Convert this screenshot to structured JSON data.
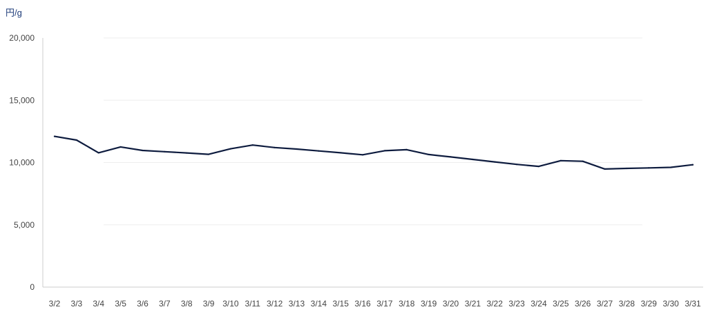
{
  "unit_label": "円/g",
  "colors": {
    "line": "#0d1b3e",
    "grid": "#eeeeee",
    "axis": "#cccccc",
    "unit": "#1f3d7a"
  },
  "chart_data": {
    "type": "line",
    "title": "",
    "xlabel": "",
    "ylabel": "円/g",
    "ylim": [
      0,
      20000
    ],
    "yticks": [
      0,
      5000,
      10000,
      15000,
      20000
    ],
    "ytick_labels": [
      "0",
      "5,000",
      "10,000",
      "15,000",
      "20,000"
    ],
    "grid": true,
    "legend": "none",
    "categories": [
      "3/2",
      "3/3",
      "3/4",
      "3/5",
      "3/6",
      "3/7",
      "3/8",
      "3/9",
      "3/10",
      "3/11",
      "3/12",
      "3/13",
      "3/14",
      "3/15",
      "3/16",
      "3/17",
      "3/18",
      "3/19",
      "3/20",
      "3/21",
      "3/22",
      "3/23",
      "3/24",
      "3/25",
      "3/26",
      "3/27",
      "3/28",
      "3/29",
      "3/30",
      "3/31"
    ],
    "series": [
      {
        "values": [
          12100,
          11800,
          10780,
          11250,
          10970,
          10870,
          10770,
          10660,
          11100,
          11400,
          11200,
          11080,
          10930,
          10780,
          10620,
          10950,
          11030,
          10640,
          10450,
          10250,
          10050,
          9850,
          9690,
          10150,
          10100,
          9480,
          9530,
          9570,
          9610,
          9820
        ]
      }
    ]
  }
}
